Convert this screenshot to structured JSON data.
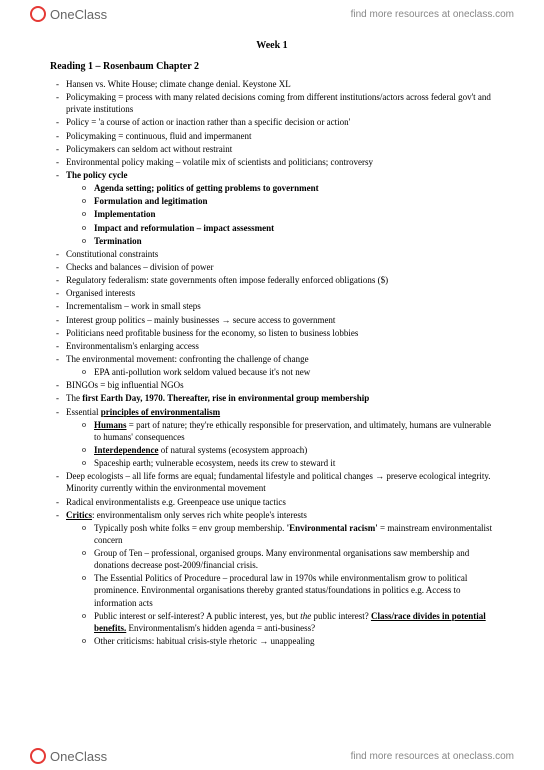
{
  "brand": "OneClass",
  "tagline": "find more resources at oneclass.com",
  "week": "Week 1",
  "reading": "Reading 1 – Rosenbaum Chapter 2",
  "b": {
    "policy_cycle": "The policy cycle",
    "agenda": "Agenda setting; politics of getting problems to government",
    "formulation": "Formulation and legitimation",
    "implementation": "Implementation",
    "impact": "Impact and reformulation – impact assessment",
    "termination": "Termination",
    "earthday": "first Earth Day, 1970. Thereafter, rise in environmental group membership",
    "principles": "principles of environmentalism",
    "humans": "Humans",
    "interdep": "Interdependence",
    "critics": "Critics",
    "env_racism": "'Environmental racism'",
    "class_race": "Class/race divides in potential benefits."
  },
  "t": {
    "l1": "Hansen vs. White House; climate change denial. Keystone XL",
    "l2": "Policymaking = process with many related decisions coming from different institutions/actors across federal gov't and private institutions",
    "l3": "Policy = 'a course of action or inaction rather than a specific decision or action'",
    "l4": "Policymaking = continuous, fluid and impermanent",
    "l5": "Policymakers can seldom act without restraint",
    "l6": "Environmental policy making – volatile mix of scientists and politicians; controversy",
    "l8": "Constitutional constraints",
    "l9": "Checks and balances – division of power",
    "l10": "Regulatory federalism: state governments often impose federally enforced obligations ($)",
    "l11": "Organised interests",
    "l12": "Incrementalism – work in small steps",
    "l13": "Interest group politics – mainly businesses → secure access to government",
    "l14": "Politicians need profitable business for the economy, so listen to business lobbies",
    "l15": "Environmentalism's enlarging access",
    "l16": "The environmental movement: confronting the challenge of change",
    "l16a": "EPA anti-pollution work seldom valued because it's not new",
    "l17": "BINGOs = big influential NGOs",
    "l18_pre": "The ",
    "l19_pre": "Essential ",
    "l19a_post": " = part of nature; they're ethically responsible for preservation, and ultimately, humans are vulnerable to humans' consequences",
    "l19b_post": " of natural systems (ecosystem approach)",
    "l19c": "Spaceship earth; vulnerable ecosystem, needs its crew to steward it",
    "l20": "Deep ecologists – all life forms are equal; fundamental lifestyle and political changes → preserve ecological integrity. Minority currently within the environmental movement",
    "l21": "Radical environmentalists e.g. Greenpeace use unique tactics",
    "l22_post": ": environmentalism only serves rich white people's interests",
    "l22a_pre": "Typically posh white folks = env group membership. ",
    "l22a_post": " = mainstream environmentalist concern",
    "l22b": "Group of Ten – professional, organised groups. Many environmental organisations saw membership and donations decrease post-2009/financial crisis.",
    "l22c": "The Essential Politics of Procedure – procedural law in 1970s while environmentalism grow to political prominence. Environmental organisations thereby granted status/foundations in politics e.g. Access to information acts",
    "l22d_pre": "Public interest or self-interest? A public interest, yes, but ",
    "l22d_the": "the",
    "l22d_mid": " public interest? ",
    "l22d_post": " Environmentalism's hidden agenda = anti-business?",
    "l22e": "Other criticisms: habitual crisis-style rhetoric → unappealing"
  }
}
